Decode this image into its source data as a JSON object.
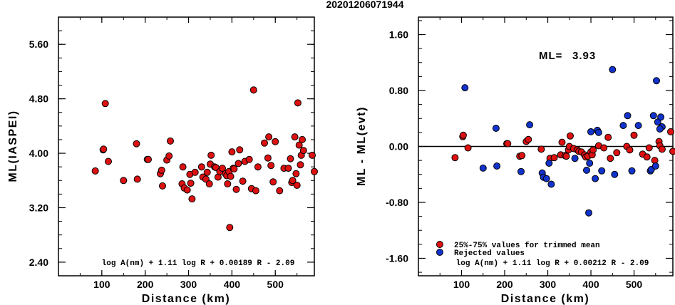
{
  "title": "20201206071944",
  "colors": {
    "accepted": "#dd1111",
    "rejected": "#1133cc"
  },
  "chart_data": [
    {
      "type": "scatter",
      "xlabel": "Distance (km)",
      "ylabel": "ML(IASPEI)",
      "xlim": [
        0,
        590
      ],
      "ylim": [
        2.2,
        6.0
      ],
      "xticks": [
        100,
        200,
        300,
        400,
        500
      ],
      "yticks": [
        2.4,
        3.2,
        4.0,
        4.8,
        5.6
      ],
      "ytick_labels": [
        "2.40",
        "3.20",
        "4.00",
        "4.80",
        "5.60"
      ],
      "formula": "log A(nm) + 1.11 log R + 0.00189 R - 2.09",
      "series": [
        {
          "points": [
            [
              85,
              3.74
            ],
            [
              103,
              4.05
            ],
            [
              104,
              4.06
            ],
            [
              108,
              4.73
            ],
            [
              115,
              3.88
            ],
            [
              150,
              3.6
            ],
            [
              180,
              4.14
            ],
            [
              182,
              3.62
            ],
            [
              205,
              3.91
            ],
            [
              207,
              3.91
            ],
            [
              235,
              3.7
            ],
            [
              238,
              3.75
            ],
            [
              240,
              3.52
            ],
            [
              250,
              3.9
            ],
            [
              255,
              3.96
            ],
            [
              258,
              4.18
            ],
            [
              285,
              3.55
            ],
            [
              287,
              3.8
            ],
            [
              290,
              3.49
            ],
            [
              297,
              3.46
            ],
            [
              303,
              3.69
            ],
            [
              305,
              3.56
            ],
            [
              308,
              3.33
            ],
            [
              315,
              3.72
            ],
            [
              330,
              3.8
            ],
            [
              333,
              3.65
            ],
            [
              340,
              3.62
            ],
            [
              343,
              3.72
            ],
            [
              348,
              3.55
            ],
            [
              350,
              3.84
            ],
            [
              352,
              3.97
            ],
            [
              360,
              3.8
            ],
            [
              363,
              3.79
            ],
            [
              368,
              3.65
            ],
            [
              372,
              3.73
            ],
            [
              378,
              3.78
            ],
            [
              385,
              3.7
            ],
            [
              388,
              3.67
            ],
            [
              390,
              3.55
            ],
            [
              393,
              3.73
            ],
            [
              395,
              2.91
            ],
            [
              397,
              3.66
            ],
            [
              400,
              4.02
            ],
            [
              403,
              3.78
            ],
            [
              405,
              3.77
            ],
            [
              410,
              3.47
            ],
            [
              415,
              3.85
            ],
            [
              418,
              4.05
            ],
            [
              425,
              3.59
            ],
            [
              430,
              3.88
            ],
            [
              440,
              3.91
            ],
            [
              445,
              3.48
            ],
            [
              450,
              4.93
            ],
            [
              455,
              3.45
            ],
            [
              460,
              3.8
            ],
            [
              475,
              4.15
            ],
            [
              483,
              3.93
            ],
            [
              485,
              4.24
            ],
            [
              490,
              3.82
            ],
            [
              495,
              3.58
            ],
            [
              500,
              4.17
            ],
            [
              510,
              3.45
            ],
            [
              520,
              3.78
            ],
            [
              530,
              3.78
            ],
            [
              535,
              3.92
            ],
            [
              538,
              3.57
            ],
            [
              540,
              3.6
            ],
            [
              545,
              4.24
            ],
            [
              548,
              3.7
            ],
            [
              550,
              3.53
            ],
            [
              552,
              4.74
            ],
            [
              555,
              4.12
            ],
            [
              558,
              3.83
            ],
            [
              560,
              3.97
            ],
            [
              562,
              4.2
            ],
            [
              565,
              4.04
            ],
            [
              585,
              3.97
            ],
            [
              590,
              3.73
            ]
          ]
        }
      ]
    },
    {
      "type": "scatter",
      "xlabel": "Distance (km)",
      "ylabel": "ML - ML(evt)",
      "xlim": [
        0,
        590
      ],
      "ylim": [
        -1.85,
        1.85
      ],
      "xticks": [
        100,
        200,
        300,
        400,
        500
      ],
      "yticks": [
        -1.6,
        -0.8,
        0.0,
        0.8,
        1.6
      ],
      "ytick_labels": [
        "-1.60",
        "-0.80",
        "0.00",
        "0.80",
        "1.60"
      ],
      "zero_line": true,
      "annotation_label": "ML=",
      "annotation_value": "3.93",
      "legend": [
        {
          "marker": "accepted",
          "label": "25%-75% values for trimmed mean"
        },
        {
          "marker": "rejected",
          "label": "Rejected values"
        }
      ],
      "formula": "log A(nm) + 1.11 log R + 0.00212 R - 2.09",
      "series": [
        {
          "marker": "accepted",
          "points": [
            [
              85,
              -0.16
            ],
            [
              103,
              0.14
            ],
            [
              104,
              0.16
            ],
            [
              115,
              -0.02
            ],
            [
              205,
              0.04
            ],
            [
              207,
              0.04
            ],
            [
              235,
              -0.14
            ],
            [
              240,
              -0.13
            ],
            [
              250,
              0.07
            ],
            [
              255,
              0.1
            ],
            [
              285,
              -0.04
            ],
            [
              305,
              -0.17
            ],
            [
              315,
              -0.16
            ],
            [
              330,
              -0.12
            ],
            [
              333,
              0.06
            ],
            [
              340,
              -0.13
            ],
            [
              343,
              -0.14
            ],
            [
              348,
              -0.05
            ],
            [
              350,
              0.0
            ],
            [
              352,
              0.15
            ],
            [
              360,
              -0.03
            ],
            [
              368,
              -0.05
            ],
            [
              372,
              -0.07
            ],
            [
              378,
              -0.08
            ],
            [
              385,
              -0.12
            ],
            [
              388,
              -0.15
            ],
            [
              393,
              -0.14
            ],
            [
              400,
              -0.08
            ],
            [
              403,
              -0.12
            ],
            [
              405,
              -0.05
            ],
            [
              418,
              0.01
            ],
            [
              430,
              -0.02
            ],
            [
              440,
              0.13
            ],
            [
              445,
              -0.17
            ],
            [
              460,
              -0.09
            ],
            [
              483,
              0.0
            ],
            [
              490,
              -0.05
            ],
            [
              500,
              0.16
            ],
            [
              520,
              -0.11
            ],
            [
              530,
              -0.15
            ],
            [
              535,
              -0.02
            ],
            [
              548,
              -0.2
            ],
            [
              558,
              0.07
            ],
            [
              560,
              0.01
            ],
            [
              565,
              -0.04
            ],
            [
              585,
              0.21
            ],
            [
              590,
              -0.07
            ]
          ]
        },
        {
          "marker": "rejected",
          "points": [
            [
              108,
              0.84
            ],
            [
              150,
              -0.31
            ],
            [
              180,
              0.26
            ],
            [
              182,
              -0.28
            ],
            [
              238,
              -0.36
            ],
            [
              258,
              0.31
            ],
            [
              287,
              -0.38
            ],
            [
              290,
              -0.44
            ],
            [
              297,
              -0.46
            ],
            [
              303,
              -0.24
            ],
            [
              308,
              -0.54
            ],
            [
              363,
              -0.17
            ],
            [
              390,
              -0.34
            ],
            [
              395,
              -0.95
            ],
            [
              397,
              -0.24
            ],
            [
              400,
              0.21
            ],
            [
              410,
              -0.46
            ],
            [
              415,
              0.23
            ],
            [
              418,
              0.2
            ],
            [
              425,
              -0.35
            ],
            [
              450,
              1.1
            ],
            [
              455,
              -0.4
            ],
            [
              475,
              0.3
            ],
            [
              485,
              0.44
            ],
            [
              495,
              -0.35
            ],
            [
              510,
              0.3
            ],
            [
              538,
              -0.35
            ],
            [
              540,
              -0.33
            ],
            [
              545,
              0.44
            ],
            [
              550,
              -0.28
            ],
            [
              552,
              0.94
            ],
            [
              555,
              0.35
            ],
            [
              562,
              0.42
            ],
            [
              565,
              0.28
            ],
            [
              560,
              0.25
            ]
          ]
        }
      ]
    }
  ]
}
